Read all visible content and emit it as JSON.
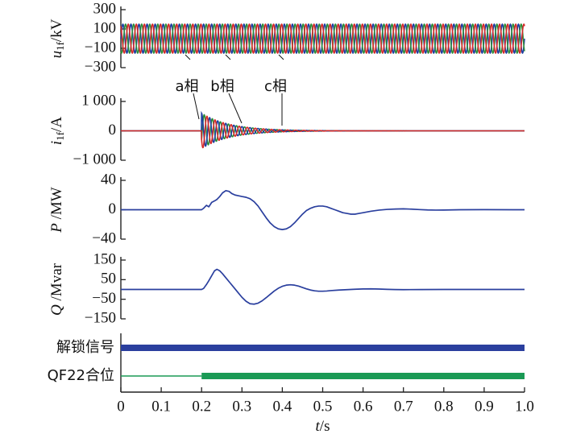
{
  "chart_data": [
    {
      "type": "line",
      "panel": "voltage",
      "ylabel_var": "u",
      "ylabel_sub": "1f",
      "ylabel_unit": "/kV",
      "ylim": [
        -300,
        300
      ],
      "yticks": [
        "300",
        "100",
        "−100",
        "−300"
      ],
      "ytick_values": [
        300,
        100,
        -100,
        -300
      ],
      "series": [
        {
          "name": "a相",
          "color": "#1f3fa0",
          "amplitude": 150,
          "frequency_hz": 50,
          "phase_deg": 0
        },
        {
          "name": "b相",
          "color": "#2e8b3a",
          "amplitude": 150,
          "frequency_hz": 50,
          "phase_deg": -120
        },
        {
          "name": "c相",
          "color": "#d42a2a",
          "amplitude": 150,
          "frequency_hz": 50,
          "phase_deg": 120
        }
      ],
      "annotations": [
        "a相",
        "b相",
        "c相"
      ]
    },
    {
      "type": "line",
      "panel": "current",
      "ylabel_var": "i",
      "ylabel_sub": "1f",
      "ylabel_unit": "/A",
      "ylim": [
        -1000,
        1000
      ],
      "yticks": [
        "1 000",
        "0",
        "−1 000"
      ],
      "ytick_values": [
        1000,
        0,
        -1000
      ],
      "event_time": 0.2,
      "peak_amplitude": 600,
      "decay_tau": 0.07,
      "osc_frequency_hz": 50,
      "series": [
        {
          "name": "a相",
          "color": "#1f3fa0"
        },
        {
          "name": "b相",
          "color": "#2e8b3a"
        },
        {
          "name": "c相",
          "color": "#d42a2a"
        }
      ]
    },
    {
      "type": "line",
      "panel": "active-power",
      "ylabel_var": "P",
      "ylabel_unit": "/MW",
      "ylim": [
        -40,
        40
      ],
      "yticks": [
        "40",
        "0",
        "−40"
      ],
      "ytick_values": [
        40,
        0,
        -40
      ],
      "series": [
        {
          "color": "#2a3f9e",
          "points": [
            [
              0,
              0
            ],
            [
              0.2,
              0
            ],
            [
              0.205,
              2
            ],
            [
              0.212,
              6
            ],
            [
              0.218,
              4
            ],
            [
              0.225,
              10
            ],
            [
              0.232,
              12
            ],
            [
              0.238,
              14
            ],
            [
              0.245,
              18
            ],
            [
              0.252,
              23
            ],
            [
              0.26,
              26
            ],
            [
              0.268,
              25
            ],
            [
              0.275,
              22
            ],
            [
              0.283,
              20
            ],
            [
              0.292,
              19
            ],
            [
              0.3,
              18
            ],
            [
              0.31,
              17
            ],
            [
              0.32,
              15
            ],
            [
              0.33,
              11
            ],
            [
              0.34,
              5
            ],
            [
              0.35,
              -3
            ],
            [
              0.36,
              -11
            ],
            [
              0.37,
              -18
            ],
            [
              0.38,
              -23
            ],
            [
              0.39,
              -26
            ],
            [
              0.4,
              -27
            ],
            [
              0.41,
              -26
            ],
            [
              0.42,
              -23
            ],
            [
              0.43,
              -18
            ],
            [
              0.44,
              -12
            ],
            [
              0.45,
              -6
            ],
            [
              0.46,
              -1
            ],
            [
              0.47,
              2
            ],
            [
              0.48,
              4
            ],
            [
              0.49,
              5
            ],
            [
              0.5,
              5
            ],
            [
              0.51,
              4
            ],
            [
              0.52,
              2
            ],
            [
              0.53,
              0
            ],
            [
              0.54,
              -2
            ],
            [
              0.55,
              -4
            ],
            [
              0.56,
              -5
            ],
            [
              0.57,
              -6
            ],
            [
              0.58,
              -6
            ],
            [
              0.59,
              -5
            ],
            [
              0.6,
              -4
            ],
            [
              0.62,
              -2
            ],
            [
              0.64,
              -0.5
            ],
            [
              0.66,
              0.5
            ],
            [
              0.68,
              1
            ],
            [
              0.7,
              1.2
            ],
            [
              0.72,
              0.8
            ],
            [
              0.74,
              0.2
            ],
            [
              0.76,
              -0.3
            ],
            [
              0.78,
              -0.5
            ],
            [
              0.8,
              -0.4
            ],
            [
              0.84,
              0
            ],
            [
              0.9,
              0.1
            ],
            [
              1.0,
              0
            ]
          ]
        }
      ]
    },
    {
      "type": "line",
      "panel": "reactive-power",
      "ylabel_var": "Q",
      "ylabel_unit": "/Mvar",
      "ylim": [
        -150,
        150
      ],
      "yticks": [
        "150",
        "50",
        "−50",
        "−150"
      ],
      "ytick_values": [
        150,
        50,
        -50,
        -150
      ],
      "series": [
        {
          "color": "#2a3f9e",
          "points": [
            [
              0,
              0
            ],
            [
              0.2,
              0
            ],
            [
              0.205,
              5
            ],
            [
              0.212,
              25
            ],
            [
              0.218,
              45
            ],
            [
              0.225,
              70
            ],
            [
              0.232,
              95
            ],
            [
              0.238,
              103
            ],
            [
              0.245,
              95
            ],
            [
              0.252,
              80
            ],
            [
              0.26,
              60
            ],
            [
              0.27,
              35
            ],
            [
              0.28,
              10
            ],
            [
              0.29,
              -15
            ],
            [
              0.3,
              -40
            ],
            [
              0.31,
              -60
            ],
            [
              0.32,
              -73
            ],
            [
              0.33,
              -75
            ],
            [
              0.34,
              -70
            ],
            [
              0.35,
              -58
            ],
            [
              0.36,
              -42
            ],
            [
              0.37,
              -25
            ],
            [
              0.38,
              -8
            ],
            [
              0.39,
              6
            ],
            [
              0.4,
              16
            ],
            [
              0.41,
              22
            ],
            [
              0.42,
              24
            ],
            [
              0.43,
              22
            ],
            [
              0.44,
              17
            ],
            [
              0.45,
              10
            ],
            [
              0.46,
              3
            ],
            [
              0.47,
              -3
            ],
            [
              0.48,
              -7
            ],
            [
              0.49,
              -9
            ],
            [
              0.5,
              -9
            ],
            [
              0.51,
              -8
            ],
            [
              0.52,
              -6
            ],
            [
              0.54,
              -3
            ],
            [
              0.56,
              -1
            ],
            [
              0.58,
              1
            ],
            [
              0.6,
              2.5
            ],
            [
              0.62,
              3
            ],
            [
              0.64,
              2
            ],
            [
              0.66,
              0.5
            ],
            [
              0.68,
              -0.5
            ],
            [
              0.7,
              -1
            ],
            [
              0.74,
              -0.5
            ],
            [
              0.8,
              0
            ],
            [
              1.0,
              0
            ]
          ]
        }
      ]
    },
    {
      "type": "signal",
      "panel": "status",
      "signals": [
        {
          "label": "解锁信号",
          "color": "#2a3f9e",
          "start": 0,
          "end": 1.0,
          "style": "thick"
        },
        {
          "label": "QF22合位",
          "color": "#1a9a55",
          "thin_until": 0.2,
          "end": 1.0,
          "style": "thin-then-thick"
        }
      ]
    }
  ],
  "x_axis": {
    "label_var": "t",
    "label_unit": "/s",
    "xlim": [
      0,
      1.0
    ],
    "ticks": [
      "0",
      "0.1",
      "0.2",
      "0.3",
      "0.4",
      "0.5",
      "0.6",
      "0.7",
      "0.8",
      "0.9",
      "1.0"
    ],
    "tick_values": [
      0,
      0.1,
      0.2,
      0.3,
      0.4,
      0.5,
      0.6,
      0.7,
      0.8,
      0.9,
      1.0
    ]
  }
}
